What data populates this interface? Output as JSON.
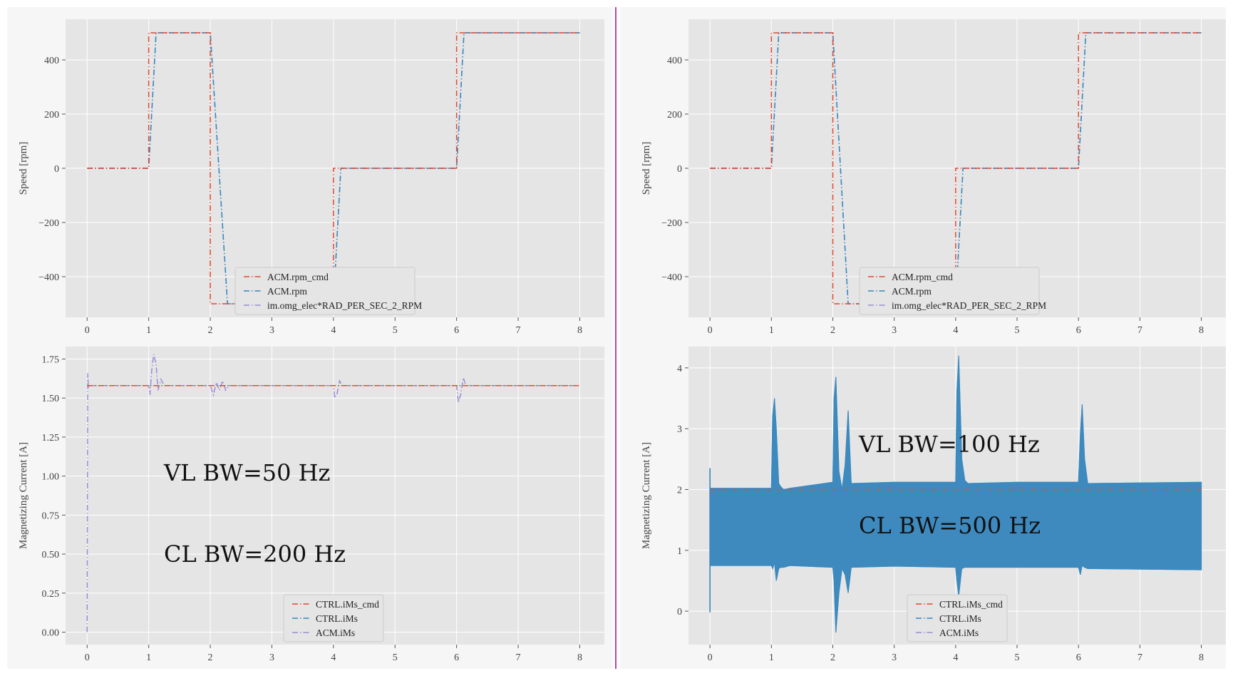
{
  "colors": {
    "axes_bg": "#e5e5e5",
    "grid": "#ffffff",
    "cmd": "#e24a33",
    "meas": "#348abd",
    "model": "#988ed5",
    "divider": "#b04a9e"
  },
  "panels": [
    {
      "id": "left",
      "annotation_lines": [
        "VL BW=50 Hz",
        "CL BW=200 Hz"
      ],
      "charts": [
        {
          "type": "line",
          "ylabel": "Speed [rpm]",
          "xlim": [
            -0.35,
            8.4
          ],
          "ylim": [
            -550,
            550
          ],
          "xticks": [
            0,
            1,
            2,
            3,
            4,
            5,
            6,
            7,
            8
          ],
          "yticks": [
            400,
            200,
            0,
            -200,
            -400
          ],
          "ytick_labels": [
            "400",
            "200",
            "0",
            "−200",
            "−400"
          ],
          "legend_position": "lower-center",
          "series": [
            {
              "name": "ACM.rpm_cmd",
              "color": "#e24a33",
              "x": [
                0,
                1,
                1,
                2,
                2,
                4,
                4,
                6,
                6,
                8
              ],
              "y": [
                0,
                0,
                500,
                500,
                -500,
                -500,
                0,
                0,
                500,
                500
              ]
            },
            {
              "name": "ACM.rpm",
              "color": "#348abd",
              "x": [
                0,
                1,
                1.12,
                2,
                2.28,
                4,
                4.12,
                6,
                6.12,
                8
              ],
              "y": [
                0,
                0,
                500,
                500,
                -500,
                -500,
                0,
                0,
                500,
                500
              ]
            },
            {
              "name": "im.omg_elec*RAD_PER_SEC_2_RPM",
              "color": "#988ed5",
              "x": [
                0,
                1,
                1.12,
                2,
                2.28,
                4,
                4.12,
                6,
                6.12,
                8
              ],
              "y": [
                0,
                0,
                500,
                500,
                -500,
                -500,
                0,
                0,
                500,
                500
              ]
            }
          ]
        },
        {
          "type": "line",
          "ylabel": "Magnetizing Current [A]",
          "xlim": [
            -0.35,
            8.4
          ],
          "ylim": [
            -0.08,
            1.83
          ],
          "xticks": [
            0,
            1,
            2,
            3,
            4,
            5,
            6,
            7,
            8
          ],
          "yticks": [
            1.75,
            1.5,
            1.25,
            1.0,
            0.75,
            0.5,
            0.25,
            0.0
          ],
          "ytick_labels": [
            "1.75",
            "1.50",
            "1.25",
            "1.00",
            "0.75",
            "0.50",
            "0.25",
            "0.00"
          ],
          "legend_position": "lower-center",
          "series": [
            {
              "name": "CTRL.iMs_cmd",
              "color": "#e24a33",
              "x": [
                0,
                0.02,
                8
              ],
              "y": [
                1.58,
                1.58,
                1.58
              ]
            },
            {
              "name": "CTRL.iMs",
              "color": "#348abd",
              "x": [
                0,
                0.02,
                8
              ],
              "y": [
                1.58,
                1.58,
                1.58
              ]
            },
            {
              "name": "ACM.iMs",
              "color": "#988ed5",
              "x": [
                0,
                0.01,
                0.02,
                0.05,
                1.0,
                1.02,
                1.05,
                1.08,
                1.12,
                1.15,
                1.2,
                1.25,
                2.0,
                2.05,
                2.1,
                2.15,
                2.2,
                2.25,
                2.3,
                4.0,
                4.02,
                4.06,
                4.1,
                4.14,
                6.0,
                6.03,
                6.07,
                6.11,
                6.15,
                8
              ],
              "y": [
                0.0,
                1.66,
                1.57,
                1.58,
                1.58,
                1.52,
                1.68,
                1.78,
                1.72,
                1.55,
                1.62,
                1.58,
                1.58,
                1.52,
                1.6,
                1.55,
                1.61,
                1.55,
                1.58,
                1.58,
                1.5,
                1.53,
                1.61,
                1.58,
                1.58,
                1.47,
                1.53,
                1.63,
                1.58,
                1.58
              ]
            }
          ]
        }
      ]
    },
    {
      "id": "right",
      "annotation_lines": [
        "VL BW=100 Hz",
        "CL BW=500 Hz"
      ],
      "charts": [
        {
          "type": "line",
          "ylabel": "Speed [rpm]",
          "xlim": [
            -0.35,
            8.4
          ],
          "ylim": [
            -550,
            550
          ],
          "xticks": [
            0,
            1,
            2,
            3,
            4,
            5,
            6,
            7,
            8
          ],
          "yticks": [
            400,
            200,
            0,
            -200,
            -400
          ],
          "ytick_labels": [
            "400",
            "200",
            "0",
            "−200",
            "−400"
          ],
          "legend_position": "lower-center",
          "series": [
            {
              "name": "ACM.rpm_cmd",
              "color": "#e24a33",
              "x": [
                0,
                1,
                1,
                2,
                2,
                4,
                4,
                6,
                6,
                8
              ],
              "y": [
                0,
                0,
                500,
                500,
                -500,
                -500,
                0,
                0,
                500,
                500
              ]
            },
            {
              "name": "ACM.rpm",
              "color": "#348abd",
              "x": [
                0,
                1,
                1.12,
                2,
                2.25,
                4,
                4.12,
                6,
                6.12,
                8
              ],
              "y": [
                0,
                0,
                500,
                500,
                -500,
                -500,
                0,
                0,
                500,
                500
              ]
            },
            {
              "name": "im.omg_elec*RAD_PER_SEC_2_RPM",
              "color": "#988ed5",
              "x": [
                0,
                1,
                1.12,
                2,
                2.25,
                4,
                4.12,
                6,
                6.12,
                8
              ],
              "y": [
                0,
                0,
                500,
                500,
                -500,
                -500,
                0,
                0,
                500,
                500
              ]
            }
          ]
        },
        {
          "type": "area",
          "ylabel": "Magnetizing Current [A]",
          "xlim": [
            -0.35,
            8.4
          ],
          "ylim": [
            -0.55,
            4.35
          ],
          "xticks": [
            0,
            1,
            2,
            3,
            4,
            5,
            6,
            7,
            8
          ],
          "yticks": [
            4,
            3,
            2,
            1,
            0
          ],
          "ytick_labels": [
            "4",
            "3",
            "2",
            "1",
            "0"
          ],
          "legend_position": "lower-center",
          "series": [
            {
              "name": "CTRL.iMs_cmd",
              "color": "#e24a33",
              "x": [
                0,
                8
              ],
              "y": [
                2.0,
                2.0
              ]
            },
            {
              "name": "CTRL.iMs",
              "color": "#348abd",
              "x": [
                0.0,
                1.0,
                1.02,
                1.05,
                1.08,
                1.12,
                1.15,
                1.2,
                1.3,
                2.0,
                2.02,
                2.05,
                2.1,
                2.15,
                2.2,
                2.25,
                2.3,
                3.0,
                4.0,
                4.02,
                4.05,
                4.1,
                4.15,
                4.2,
                5.0,
                6.0,
                6.03,
                6.06,
                6.1,
                6.15,
                8.0
              ],
              "upper": [
                2.02,
                2.02,
                3.2,
                3.5,
                3.0,
                2.1,
                2.05,
                2.0,
                2.02,
                2.12,
                3.5,
                3.85,
                2.3,
                2.0,
                2.4,
                3.3,
                2.1,
                2.12,
                2.12,
                3.6,
                4.2,
                2.5,
                2.15,
                2.1,
                2.12,
                2.12,
                2.9,
                3.4,
                2.5,
                2.1,
                2.12
              ],
              "lower": [
                0.75,
                0.75,
                0.7,
                0.8,
                0.5,
                0.7,
                0.72,
                0.72,
                0.75,
                0.72,
                0.5,
                -0.35,
                0.3,
                0.7,
                0.6,
                0.3,
                0.72,
                0.74,
                0.72,
                0.5,
                0.25,
                0.7,
                0.72,
                0.72,
                0.72,
                0.72,
                0.6,
                0.75,
                0.72,
                0.7,
                0.68
              ]
            },
            {
              "name": "ACM.iMs",
              "color": "#988ed5",
              "x": [
                0.0,
                1.0,
                1.02,
                1.05,
                1.08,
                1.12,
                1.15,
                1.2,
                1.3,
                2.0,
                2.02,
                2.05,
                2.1,
                2.15,
                2.2,
                2.25,
                2.3,
                3.0,
                4.0,
                4.02,
                4.05,
                4.1,
                4.15,
                4.2,
                5.0,
                6.0,
                6.03,
                6.06,
                6.1,
                6.15,
                8.0
              ],
              "upper": [
                2.02,
                2.02,
                3.2,
                3.5,
                3.0,
                2.1,
                2.05,
                2.0,
                2.02,
                2.12,
                3.5,
                3.85,
                2.3,
                2.0,
                2.4,
                3.3,
                2.1,
                2.12,
                2.12,
                3.6,
                4.2,
                2.5,
                2.15,
                2.1,
                2.12,
                2.12,
                2.9,
                3.4,
                2.5,
                2.1,
                2.12
              ],
              "lower": [
                0.75,
                0.75,
                0.7,
                0.8,
                0.5,
                0.7,
                0.72,
                0.72,
                0.75,
                0.72,
                0.5,
                -0.35,
                0.3,
                0.7,
                0.6,
                0.3,
                0.72,
                0.74,
                0.72,
                0.5,
                0.25,
                0.7,
                0.72,
                0.72,
                0.72,
                0.72,
                0.6,
                0.75,
                0.72,
                0.7,
                0.68
              ]
            }
          ]
        }
      ]
    }
  ],
  "chart_data": [
    {
      "type": "line",
      "ylabel": "Speed [rpm]",
      "legend": [
        "ACM.rpm_cmd",
        "ACM.rpm",
        "im.omg_elec*RAD_PER_SEC_2_RPM"
      ],
      "x": [
        0,
        1,
        2,
        4,
        6,
        8
      ],
      "series": [
        {
          "name": "ACM.rpm_cmd",
          "values": [
            0,
            500,
            -500,
            0,
            500,
            500
          ]
        }
      ],
      "ylim": [
        -550,
        550
      ]
    },
    {
      "type": "line",
      "ylabel": "Magnetizing Current [A]",
      "legend": [
        "CTRL.iMs_cmd",
        "CTRL.iMs",
        "ACM.iMs"
      ],
      "x": [
        0,
        8
      ],
      "series": [
        {
          "name": "CTRL.iMs_cmd",
          "values": [
            1.58,
            1.58
          ]
        }
      ],
      "ylim": [
        -0.08,
        1.83
      ]
    },
    {
      "type": "line",
      "ylabel": "Speed [rpm]",
      "legend": [
        "ACM.rpm_cmd",
        "ACM.rpm",
        "im.omg_elec*RAD_PER_SEC_2_RPM"
      ],
      "x": [
        0,
        1,
        2,
        4,
        6,
        8
      ],
      "series": [
        {
          "name": "ACM.rpm_cmd",
          "values": [
            0,
            500,
            -500,
            0,
            500,
            500
          ]
        }
      ],
      "ylim": [
        -550,
        550
      ]
    },
    {
      "type": "area",
      "ylabel": "Magnetizing Current [A]",
      "legend": [
        "CTRL.iMs_cmd",
        "CTRL.iMs",
        "ACM.iMs"
      ],
      "x": [
        0,
        8
      ],
      "series": [
        {
          "name": "CTRL.iMs_cmd",
          "values": [
            2.0,
            2.0
          ]
        }
      ],
      "ylim": [
        -0.55,
        4.35
      ]
    }
  ]
}
